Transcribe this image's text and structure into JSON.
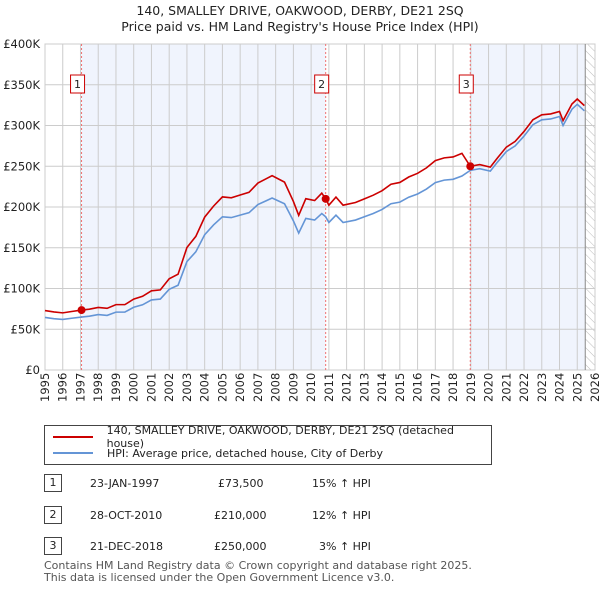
{
  "title": "140, SMALLEY DRIVE, OAKWOOD, DERBY, DE21 2SQ",
  "subtitle": "Price paid vs. HM Land Registry's House Price Index (HPI)",
  "colors": {
    "price": "#cc0000",
    "hpi": "#6495d6",
    "shade": "#f0f4fd"
  },
  "chart_data": {
    "type": "line",
    "xlim": [
      1995,
      2026
    ],
    "ylim": [
      0,
      400000
    ],
    "yticks": [
      0,
      50000,
      100000,
      150000,
      200000,
      250000,
      300000,
      350000,
      400000
    ],
    "ytick_labels": [
      "£0",
      "£50K",
      "£100K",
      "£150K",
      "£200K",
      "£250K",
      "£300K",
      "£350K",
      "£400K"
    ],
    "xticks": [
      1995,
      1996,
      1997,
      1998,
      1999,
      2000,
      2001,
      2002,
      2003,
      2004,
      2005,
      2006,
      2007,
      2008,
      2009,
      2010,
      2011,
      2012,
      2013,
      2014,
      2015,
      2016,
      2017,
      2018,
      2019,
      2020,
      2021,
      2022,
      2023,
      2024,
      2025,
      2026
    ],
    "grid": true,
    "x": [
      1995.0,
      1995.5,
      1996.0,
      1996.5,
      1997.06,
      1997.5,
      1998.0,
      1998.5,
      1999.0,
      1999.5,
      2000.0,
      2000.5,
      2001.0,
      2001.5,
      2002.0,
      2002.5,
      2003.0,
      2003.5,
      2004.0,
      2004.5,
      2005.0,
      2005.5,
      2006.0,
      2006.5,
      2007.0,
      2007.5,
      2007.8,
      2008.5,
      2009.0,
      2009.3,
      2009.7,
      2010.2,
      2010.6,
      2010.82,
      2011.0,
      2011.4,
      2011.8,
      2012.5,
      2013.0,
      2013.5,
      2014.0,
      2014.5,
      2015.0,
      2015.5,
      2016.0,
      2016.5,
      2017.0,
      2017.5,
      2018.0,
      2018.5,
      2018.97,
      2019.5,
      2020.1,
      2020.5,
      2021.0,
      2021.5,
      2022.0,
      2022.5,
      2023.0,
      2023.5,
      2024.0,
      2024.2,
      2024.7,
      2025.0,
      2025.4
    ],
    "series": [
      {
        "name": "140, SMALLEY DRIVE, OAKWOOD, DERBY, DE21 2SQ (detached house)",
        "values": [
          72900,
          71200,
          70100,
          71800,
          73500,
          74600,
          76800,
          75700,
          80200,
          80200,
          87000,
          90400,
          97200,
          98300,
          111900,
          117500,
          150300,
          163900,
          187600,
          201100,
          212400,
          211300,
          214700,
          218100,
          229400,
          235000,
          238400,
          230500,
          206800,
          189800,
          210200,
          207900,
          217000,
          210000,
          202200,
          212200,
          202200,
          205500,
          210000,
          214500,
          220000,
          227900,
          230100,
          236800,
          241300,
          248000,
          256900,
          260300,
          261400,
          265800,
          250000,
          252000,
          248900,
          260100,
          273400,
          280500,
          292700,
          307000,
          313100,
          314200,
          317200,
          306000,
          326400,
          332500,
          324400
        ]
      },
      {
        "name": "HPI: Average price, detached house, City of Derby",
        "values": [
          64500,
          63000,
          62000,
          63500,
          65000,
          66000,
          68000,
          67000,
          71000,
          71000,
          77000,
          80000,
          86000,
          87000,
          99000,
          104000,
          133000,
          145000,
          166000,
          178000,
          188000,
          187000,
          190000,
          193000,
          203000,
          208000,
          211000,
          204000,
          183000,
          168000,
          186000,
          184000,
          192000,
          188000,
          181000,
          190000,
          181000,
          184000,
          188000,
          192000,
          197000,
          204000,
          206000,
          212000,
          216000,
          222000,
          230000,
          233000,
          234000,
          238000,
          245000,
          247000,
          244000,
          255000,
          268000,
          275000,
          287000,
          301000,
          307000,
          308000,
          311000,
          300000,
          320000,
          326000,
          318000
        ]
      }
    ],
    "sales": [
      {
        "label": "1",
        "x": 1997.06,
        "price": 73500
      },
      {
        "label": "2",
        "x": 2010.82,
        "price": 210000
      },
      {
        "label": "3",
        "x": 2018.97,
        "price": 250000
      }
    ],
    "forecast_from": 2025.45
  },
  "legend": {
    "price": "140, SMALLEY DRIVE, OAKWOOD, DERBY, DE21 2SQ (detached house)",
    "hpi": "HPI: Average price, detached house, City of Derby"
  },
  "transactions": [
    {
      "num": "1",
      "date": "23-JAN-1997",
      "price": "£73,500",
      "hpi": "15% ↑ HPI"
    },
    {
      "num": "2",
      "date": "28-OCT-2010",
      "price": "£210,000",
      "hpi": "12% ↑ HPI"
    },
    {
      "num": "3",
      "date": "21-DEC-2018",
      "price": "£250,000",
      "hpi": "3% ↑ HPI"
    }
  ],
  "footer": {
    "line1": "Contains HM Land Registry data © Crown copyright and database right 2025.",
    "line2": "This data is licensed under the Open Government Licence v3.0."
  }
}
